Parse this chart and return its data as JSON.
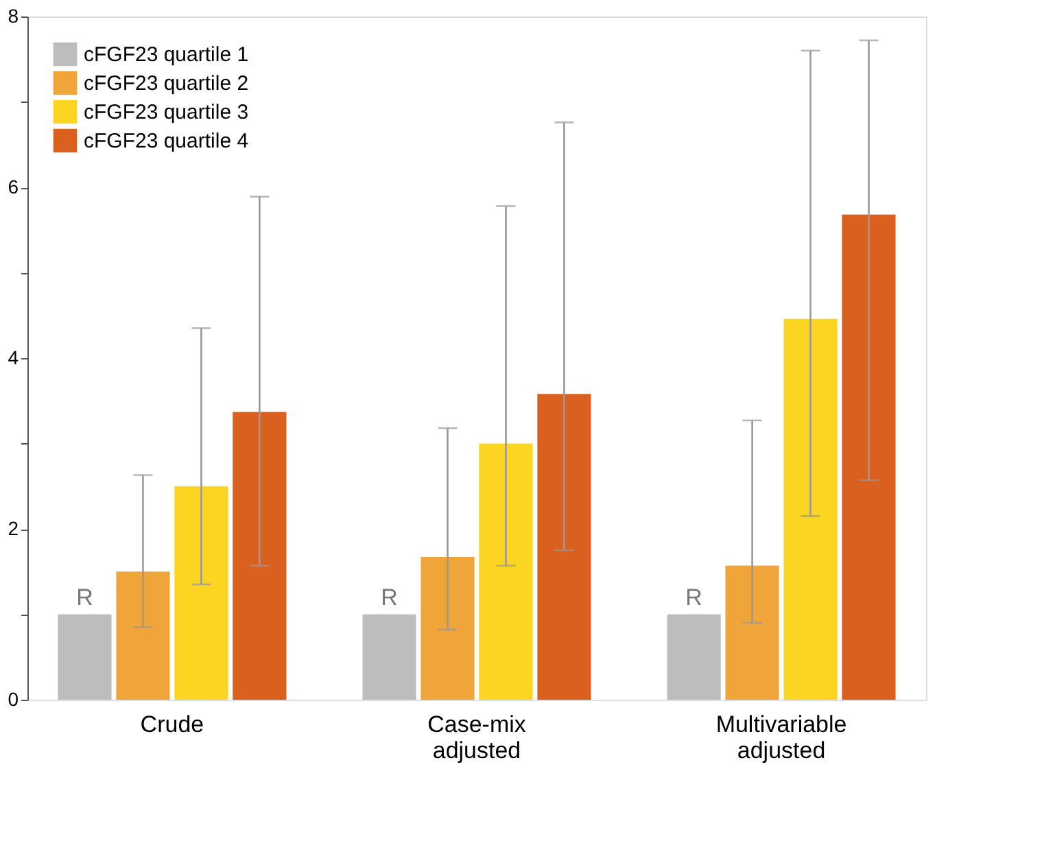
{
  "chart_data": {
    "type": "bar",
    "categories": [
      "Crude",
      "Case-mix adjusted",
      "Multivariable adjusted"
    ],
    "series": [
      {
        "name": "cFGF23 quartile 1",
        "color": "#bdbdbd",
        "values": [
          1,
          1,
          1
        ],
        "value_labels": [
          "R",
          "R",
          "R"
        ]
      },
      {
        "name": "cFGF23 quartile 2",
        "color": "#f0a53a",
        "values": [
          1.5,
          1.67,
          1.57
        ],
        "errors": [
          [
            0.85,
            2.63
          ],
          [
            0.82,
            3.18
          ],
          [
            0.9,
            3.27
          ]
        ]
      },
      {
        "name": "cFGF23 quartile 3",
        "color": "#fbd521",
        "values": [
          2.5,
          3.0,
          4.46
        ],
        "errors": [
          [
            1.35,
            4.35
          ],
          [
            1.57,
            5.78
          ],
          [
            2.15,
            7.6
          ]
        ]
      },
      {
        "name": "cFGF23 quartile 4",
        "color": "#d9601e",
        "values": [
          3.37,
          3.58,
          5.68
        ],
        "errors": [
          [
            1.57,
            5.89
          ],
          [
            1.75,
            6.76
          ],
          [
            2.57,
            7.72
          ]
        ]
      }
    ],
    "ylim": [
      0,
      8
    ],
    "yticks": [
      0,
      {
        "value": 1,
        "label": null
      },
      2,
      {
        "value": 3,
        "label": null
      },
      4,
      {
        "value": 5,
        "label": null
      },
      6,
      {
        "value": 7,
        "label": null
      },
      8
    ],
    "legend": "top left",
    "grid": false
  }
}
